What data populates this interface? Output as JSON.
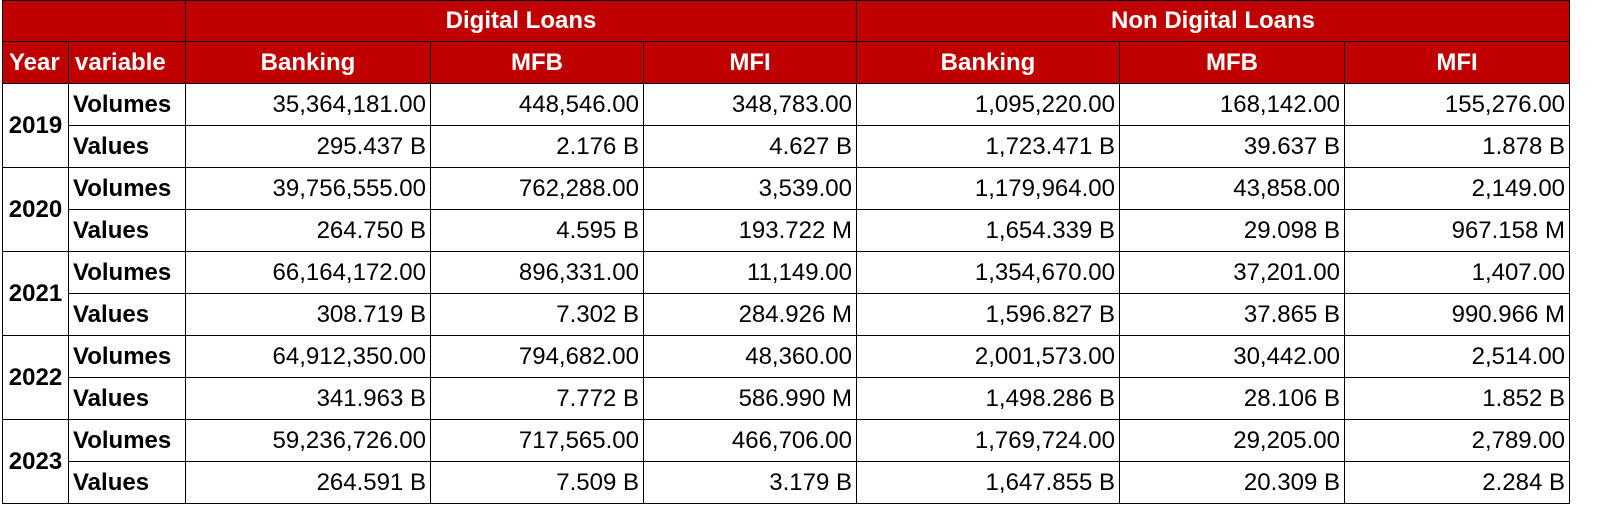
{
  "table": {
    "group_headers": {
      "blank": "",
      "digital": "Digital Loans",
      "non_digital": "Non Digital Loans"
    },
    "column_headers": [
      "Year",
      "variable",
      "Banking",
      "MFB",
      "MFI",
      "Banking",
      "MFB",
      "MFI"
    ],
    "years": [
      {
        "year": "2019",
        "rows": [
          {
            "variable": "Volumes",
            "cells": [
              "35,364,181.00",
              "448,546.00",
              "348,783.00",
              "1,095,220.00",
              "168,142.00",
              "155,276.00"
            ]
          },
          {
            "variable": "Values",
            "cells": [
              "295.437 B",
              "2.176 B",
              "4.627 B",
              "1,723.471 B",
              "39.637 B",
              "1.878 B"
            ]
          }
        ]
      },
      {
        "year": "2020",
        "rows": [
          {
            "variable": "Volumes",
            "cells": [
              "39,756,555.00",
              "762,288.00",
              "3,539.00",
              "1,179,964.00",
              "43,858.00",
              "2,149.00"
            ]
          },
          {
            "variable": "Values",
            "cells": [
              "264.750 B",
              "4.595 B",
              "193.722 M",
              "1,654.339 B",
              "29.098 B",
              "967.158 M"
            ]
          }
        ]
      },
      {
        "year": "2021",
        "rows": [
          {
            "variable": "Volumes",
            "cells": [
              "66,164,172.00",
              "896,331.00",
              "11,149.00",
              "1,354,670.00",
              "37,201.00",
              "1,407.00"
            ]
          },
          {
            "variable": "Values",
            "cells": [
              "308.719 B",
              "7.302 B",
              "284.926 M",
              "1,596.827 B",
              "37.865 B",
              "990.966 M"
            ]
          }
        ]
      },
      {
        "year": "2022",
        "rows": [
          {
            "variable": "Volumes",
            "cells": [
              "64,912,350.00",
              "794,682.00",
              "48,360.00",
              "2,001,573.00",
              "30,442.00",
              "2,514.00"
            ]
          },
          {
            "variable": "Values",
            "cells": [
              "341.963 B",
              "7.772 B",
              "586.990 M",
              "1,498.286 B",
              "28.106 B",
              "1.852 B"
            ]
          }
        ]
      },
      {
        "year": "2023",
        "rows": [
          {
            "variable": "Volumes",
            "cells": [
              "59,236,726.00",
              "717,565.00",
              "466,706.00",
              "1,769,724.00",
              "29,205.00",
              "2,789.00"
            ]
          },
          {
            "variable": "Values",
            "cells": [
              "264.591 B",
              "7.509 B",
              "3.179 B",
              "1,647.855 B",
              "20.309 B",
              "2.284 B"
            ]
          }
        ]
      }
    ],
    "colors": {
      "header_background": "#c00000",
      "header_text": "#ffffff",
      "border": "#000000"
    }
  }
}
